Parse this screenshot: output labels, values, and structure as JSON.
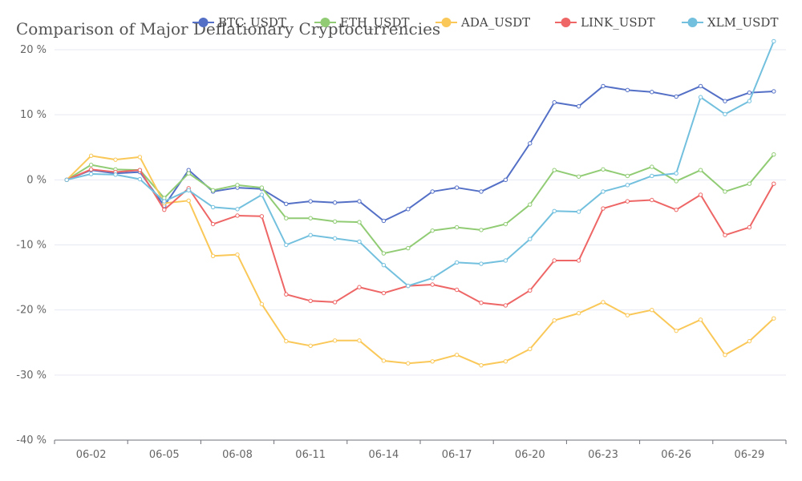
{
  "chart_data": {
    "type": "line",
    "title": "Comparison of Major Deflationary Cryptocurrencies",
    "xlabel": "",
    "ylabel": "",
    "ylim": [
      -40,
      20
    ],
    "yticks": [
      20,
      10,
      0,
      -10,
      -20,
      -30,
      -40
    ],
    "y_unit": " %",
    "legend_position": "top",
    "grid": true,
    "x": [
      "06-01",
      "06-02",
      "06-03",
      "06-04",
      "06-05",
      "06-06",
      "06-07",
      "06-08",
      "06-09",
      "06-10",
      "06-11",
      "06-12",
      "06-13",
      "06-14",
      "06-15",
      "06-16",
      "06-17",
      "06-18",
      "06-19",
      "06-20",
      "06-21",
      "06-22",
      "06-23",
      "06-24",
      "06-25",
      "06-26",
      "06-27",
      "06-28",
      "06-29",
      "06-30"
    ],
    "xtick_labels": [
      "06-02",
      "06-05",
      "06-08",
      "06-11",
      "06-14",
      "06-17",
      "06-20",
      "06-23",
      "06-26",
      "06-29"
    ],
    "series": [
      {
        "name": "BTC_USDT",
        "color": "#5470c6",
        "values": [
          0,
          1.5,
          1.0,
          1.2,
          -4.0,
          1.5,
          -1.8,
          -1.2,
          -1.4,
          -3.7,
          -3.3,
          -3.5,
          -3.3,
          -6.3,
          -4.5,
          -1.8,
          -1.2,
          -1.8,
          0,
          5.6,
          11.9,
          11.3,
          14.4,
          13.8,
          13.5,
          12.8,
          14.4,
          12.1,
          13.4,
          13.6
        ]
      },
      {
        "name": "ETH_USDT",
        "color": "#91cc75",
        "values": [
          0,
          2.3,
          1.6,
          1.5,
          -2.8,
          1.0,
          -1.6,
          -0.8,
          -1.2,
          -5.9,
          -5.9,
          -6.4,
          -6.5,
          -11.3,
          -10.5,
          -7.8,
          -7.3,
          -7.7,
          -6.8,
          -3.8,
          1.5,
          0.5,
          1.6,
          0.6,
          2.0,
          -0.2,
          1.5,
          -1.8,
          -0.6,
          3.9
        ]
      },
      {
        "name": "ADA_USDT",
        "color": "#fac858",
        "values": [
          0,
          3.7,
          3.1,
          3.5,
          -3.6,
          -3.2,
          -11.7,
          -11.5,
          -19.1,
          -24.8,
          -25.5,
          -24.7,
          -24.7,
          -27.8,
          -28.2,
          -27.9,
          -26.9,
          -28.5,
          -27.9,
          -26.0,
          -21.6,
          -20.5,
          -18.8,
          -20.8,
          -20.0,
          -23.2,
          -21.5,
          -26.9,
          -24.8,
          -21.3
        ]
      },
      {
        "name": "LINK_USDT",
        "color": "#ee6666",
        "values": [
          0,
          1.6,
          1.2,
          1.5,
          -4.6,
          -1.3,
          -6.8,
          -5.5,
          -5.6,
          -17.6,
          -18.6,
          -18.8,
          -16.5,
          -17.4,
          -16.3,
          -16.1,
          -16.9,
          -18.9,
          -19.3,
          -17.0,
          -12.4,
          -12.4,
          -4.4,
          -3.3,
          -3.1,
          -4.6,
          -2.3,
          -8.5,
          -7.3,
          -0.6
        ]
      },
      {
        "name": "XLM_USDT",
        "color": "#73c0de",
        "values": [
          0,
          0.9,
          0.8,
          0.1,
          -3.3,
          -1.6,
          -4.2,
          -4.5,
          -2.3,
          -10.0,
          -8.5,
          -9.0,
          -9.5,
          -13.1,
          -16.3,
          -15.1,
          -12.7,
          -12.9,
          -12.4,
          -9.1,
          -4.8,
          -4.9,
          -1.8,
          -0.8,
          0.6,
          1.0,
          12.7,
          10.1,
          12.1,
          21.3
        ]
      }
    ]
  }
}
